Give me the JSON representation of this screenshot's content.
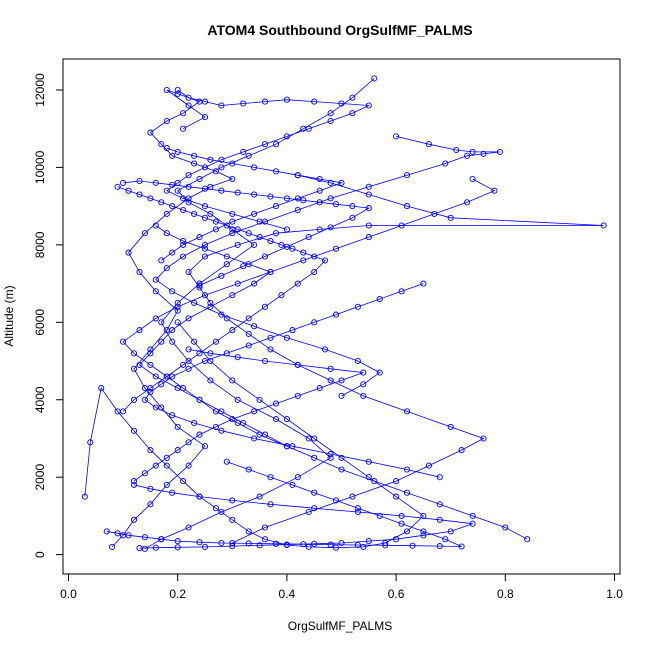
{
  "chart_data": {
    "type": "line",
    "title": "ATOM4 Southbound OrgSulfMF_PALMS",
    "xlabel": "OrgSulfMF_PALMS",
    "ylabel": "Altitude (m)",
    "xlim": [
      -0.01,
      1.01
    ],
    "ylim": [
      -500,
      12800
    ],
    "xticks": [
      0.0,
      0.2,
      0.4,
      0.6,
      0.8,
      1.0
    ],
    "xtick_labels": [
      "0.0",
      "0.2",
      "0.4",
      "0.6",
      "0.8",
      "1.0"
    ],
    "yticks": [
      0,
      2000,
      4000,
      6000,
      8000,
      10000,
      12000
    ],
    "ytick_labels": [
      "0",
      "2000",
      "4000",
      "6000",
      "8000",
      "10000",
      "12000"
    ],
    "grid": false,
    "series_color": "#0000ff",
    "marker": "open-circle",
    "series": [
      {
        "x": [
          0.08,
          0.1,
          0.12,
          0.15,
          0.18,
          0.22,
          0.25,
          0.2,
          0.17,
          0.14,
          0.12,
          0.15,
          0.18,
          0.2,
          0.16,
          0.13,
          0.11,
          0.14,
          0.18,
          0.22,
          0.26,
          0.3,
          0.27,
          0.23,
          0.19,
          0.17,
          0.15,
          0.18,
          0.21,
          0.24,
          0.2,
          0.18,
          0.22,
          0.25,
          0.21
        ],
        "y": [
          200,
          500,
          900,
          1300,
          1800,
          2300,
          2800,
          3300,
          3800,
          4300,
          4800,
          5300,
          5800,
          6300,
          6800,
          7300,
          7800,
          8300,
          8800,
          9200,
          9500,
          9700,
          9900,
          10100,
          10300,
          10600,
          10900,
          11200,
          11400,
          11700,
          11900,
          12000,
          11600,
          11300,
          11000
        ]
      },
      {
        "x": [
          0.14,
          0.17,
          0.22,
          0.28,
          0.35,
          0.42,
          0.48,
          0.44,
          0.38,
          0.31,
          0.26,
          0.22,
          0.19,
          0.17,
          0.2,
          0.24,
          0.29,
          0.34,
          0.3,
          0.26,
          0.22,
          0.2,
          0.24,
          0.28,
          0.33,
          0.38,
          0.43,
          0.48,
          0.52,
          0.56
        ],
        "y": [
          150,
          400,
          700,
          1100,
          1500,
          2000,
          2500,
          3000,
          3500,
          4000,
          4500,
          5000,
          5500,
          6000,
          6500,
          7000,
          7500,
          8000,
          8400,
          8800,
          9100,
          9400,
          9700,
          10000,
          10300,
          10600,
          11000,
          11400,
          11800,
          12300
        ]
      },
      {
        "x": [
          0.3,
          0.36,
          0.44,
          0.52,
          0.6,
          0.66,
          0.72,
          0.76,
          0.7,
          0.62,
          0.54,
          0.48,
          0.42,
          0.37,
          0.33,
          0.29,
          0.26,
          0.24,
          0.22,
          0.25,
          0.31,
          0.38,
          0.46,
          0.55,
          0.98,
          0.7,
          0.62,
          0.55,
          0.48,
          0.42
        ],
        "y": [
          300,
          700,
          1100,
          1500,
          1900,
          2300,
          2700,
          3000,
          3300,
          3700,
          4100,
          4500,
          4900,
          5300,
          5700,
          6100,
          6500,
          6900,
          7300,
          7700,
          8000,
          8300,
          8400,
          8500,
          8500,
          8700,
          9000,
          9300,
          9600,
          9800
        ]
      },
      {
        "x": [
          0.6,
          0.66,
          0.71,
          0.74,
          0.79,
          0.76,
          0.73,
          0.69,
          0.62,
          0.55,
          0.48,
          0.42,
          0.36,
          0.3,
          0.25,
          0.21,
          0.18,
          0.16,
          0.19,
          0.23,
          0.28,
          0.34,
          0.4,
          0.47,
          0.53,
          0.57,
          0.54,
          0.5
        ],
        "y": [
          10800,
          10600,
          10450,
          10400,
          10400,
          10350,
          10300,
          10100,
          9800,
          9500,
          9200,
          8900,
          8600,
          8300,
          8000,
          7700,
          7400,
          7100,
          6800,
          6500,
          6200,
          5900,
          5600,
          5300,
          5000,
          4700,
          4400,
          4100
        ]
      },
      {
        "x": [
          0.84,
          0.8,
          0.74,
          0.68,
          0.62,
          0.56,
          0.5,
          0.45,
          0.4,
          0.35,
          0.31,
          0.27,
          0.24,
          0.21,
          0.18,
          0.15,
          0.12,
          0.1,
          0.13,
          0.16,
          0.2,
          0.25,
          0.31,
          0.37,
          0.43,
          0.49,
          0.55,
          0.61,
          0.67,
          0.73,
          0.78,
          0.74
        ],
        "y": [
          400,
          700,
          1000,
          1300,
          1600,
          1900,
          2200,
          2500,
          2800,
          3100,
          3400,
          3700,
          4000,
          4300,
          4600,
          4900,
          5200,
          5500,
          5800,
          6100,
          6400,
          6700,
          7000,
          7300,
          7600,
          7900,
          8200,
          8500,
          8800,
          9100,
          9400,
          9700
        ]
      },
      {
        "x": [
          0.03,
          0.04,
          0.06,
          0.09,
          0.12,
          0.15,
          0.18,
          0.21,
          0.24,
          0.27,
          0.3,
          0.33,
          0.36,
          0.4,
          0.44,
          0.49,
          0.54,
          0.58,
          0.62,
          0.65,
          0.6,
          0.55,
          0.5,
          0.45,
          0.4,
          0.35,
          0.3,
          0.26,
          0.23,
          0.2
        ],
        "y": [
          1500,
          2900,
          4300,
          3700,
          3200,
          2700,
          2300,
          1900,
          1500,
          1200,
          900,
          600,
          400,
          250,
          200,
          180,
          200,
          300,
          600,
          1000,
          1500,
          2000,
          2500,
          3000,
          3500,
          4000,
          4500,
          5000,
          5500,
          6000
        ]
      },
      {
        "x": [
          0.09,
          0.11,
          0.13,
          0.15,
          0.17,
          0.19,
          0.21,
          0.23,
          0.25,
          0.27,
          0.29,
          0.31,
          0.33,
          0.35,
          0.37,
          0.39,
          0.41,
          0.43,
          0.45,
          0.47,
          0.45,
          0.42,
          0.39,
          0.36,
          0.33,
          0.3,
          0.27,
          0.24,
          0.21,
          0.18,
          0.15,
          0.12,
          0.1
        ],
        "y": [
          9500,
          9400,
          9300,
          9200,
          9100,
          9000,
          8900,
          8800,
          8700,
          8600,
          8500,
          8400,
          8300,
          8200,
          8100,
          8000,
          7900,
          7800,
          7700,
          7600,
          7300,
          7000,
          6700,
          6400,
          6100,
          5800,
          5500,
          5200,
          4900,
          4600,
          4300,
          4000,
          3700
        ]
      },
      {
        "x": [
          0.2,
          0.22,
          0.25,
          0.28,
          0.32,
          0.36,
          0.4,
          0.45,
          0.5,
          0.55,
          0.52,
          0.48,
          0.44,
          0.4,
          0.36,
          0.32,
          0.28,
          0.25,
          0.22,
          0.2,
          0.18,
          0.21,
          0.25,
          0.3,
          0.35,
          0.4
        ],
        "y": [
          12000,
          11800,
          11700,
          11600,
          11650,
          11700,
          11750,
          11700,
          11650,
          11600,
          11400,
          11200,
          11000,
          10800,
          10600,
          10400,
          10200,
          10000,
          9800,
          9600,
          9400,
          9200,
          9000,
          8800,
          8600,
          8400
        ]
      },
      {
        "x": [
          0.65,
          0.61,
          0.57,
          0.53,
          0.49,
          0.45,
          0.41,
          0.37,
          0.33,
          0.29,
          0.25,
          0.22,
          0.19,
          0.17,
          0.15,
          0.14,
          0.16,
          0.19,
          0.23,
          0.28,
          0.34,
          0.41,
          0.48,
          0.55,
          0.62,
          0.68
        ],
        "y": [
          7000,
          6800,
          6600,
          6400,
          6200,
          6000,
          5800,
          5600,
          5400,
          5200,
          5000,
          4800,
          4600,
          4400,
          4200,
          4000,
          3800,
          3600,
          3400,
          3200,
          3000,
          2800,
          2600,
          2400,
          2200,
          2000
        ]
      },
      {
        "x": [
          0.07,
          0.09,
          0.11,
          0.14,
          0.17,
          0.2,
          0.24,
          0.28,
          0.33,
          0.38,
          0.43,
          0.48,
          0.53,
          0.58,
          0.63,
          0.68,
          0.72,
          0.69,
          0.65,
          0.61,
          0.57,
          0.53,
          0.49,
          0.45,
          0.41,
          0.37,
          0.33,
          0.29
        ],
        "y": [
          600,
          550,
          500,
          450,
          400,
          350,
          320,
          300,
          290,
          280,
          270,
          260,
          250,
          240,
          230,
          220,
          210,
          400,
          600,
          800,
          1000,
          1200,
          1400,
          1600,
          1800,
          2000,
          2200,
          2400
        ]
      },
      {
        "x": [
          0.16,
          0.18,
          0.21,
          0.25,
          0.29,
          0.33,
          0.37,
          0.34,
          0.3,
          0.26,
          0.22,
          0.19,
          0.17,
          0.15,
          0.13,
          0.16,
          0.2,
          0.24,
          0.28,
          0.32,
          0.36,
          0.4
        ],
        "y": [
          8500,
          8300,
          8100,
          7900,
          7700,
          7500,
          7300,
          7000,
          6700,
          6400,
          6100,
          5800,
          5500,
          5200,
          4900,
          4600,
          4300,
          4000,
          3700,
          3400,
          3100,
          2800
        ]
      },
      {
        "x": [
          0.1,
          0.13,
          0.16,
          0.19,
          0.22,
          0.25,
          0.28,
          0.31,
          0.34,
          0.37,
          0.4,
          0.43,
          0.46,
          0.49,
          0.52,
          0.55,
          0.52,
          0.48,
          0.44,
          0.4,
          0.36,
          0.32,
          0.28,
          0.24
        ],
        "y": [
          9600,
          9650,
          9600,
          9550,
          9500,
          9450,
          9400,
          9350,
          9300,
          9250,
          9200,
          9150,
          9100,
          9050,
          9000,
          8950,
          8700,
          8450,
          8200,
          7950,
          7700,
          7450,
          7200,
          6950
        ]
      },
      {
        "x": [
          0.12,
          0.15,
          0.19,
          0.24,
          0.3,
          0.37,
          0.45,
          0.53,
          0.61,
          0.68,
          0.74,
          0.7,
          0.65,
          0.6,
          0.55,
          0.5,
          0.45,
          0.4,
          0.35,
          0.3,
          0.25,
          0.2,
          0.16,
          0.13
        ],
        "y": [
          1800,
          1700,
          1600,
          1500,
          1400,
          1300,
          1200,
          1100,
          1000,
          900,
          800,
          600,
          500,
          400,
          350,
          300,
          280,
          260,
          240,
          220,
          200,
          190,
          180,
          170
        ]
      },
      {
        "x": [
          0.18,
          0.2,
          0.23,
          0.26,
          0.3,
          0.34,
          0.38,
          0.42,
          0.46,
          0.5,
          0.46,
          0.42,
          0.38,
          0.34,
          0.3,
          0.27,
          0.24,
          0.21,
          0.19,
          0.17
        ],
        "y": [
          10500,
          10400,
          10300,
          10200,
          10100,
          10000,
          9900,
          9800,
          9700,
          9600,
          9400,
          9200,
          9000,
          8800,
          8600,
          8400,
          8200,
          8000,
          7800,
          7600
        ]
      },
      {
        "x": [
          0.22,
          0.26,
          0.31,
          0.36,
          0.42,
          0.48,
          0.54,
          0.5,
          0.46,
          0.42,
          0.38,
          0.34,
          0.3,
          0.27,
          0.24,
          0.22,
          0.2,
          0.18,
          0.16,
          0.14,
          0.12
        ],
        "y": [
          5300,
          5200,
          5100,
          5000,
          4900,
          4800,
          4700,
          4500,
          4300,
          4100,
          3900,
          3700,
          3500,
          3300,
          3100,
          2900,
          2700,
          2500,
          2300,
          2100,
          1900
        ]
      }
    ]
  }
}
